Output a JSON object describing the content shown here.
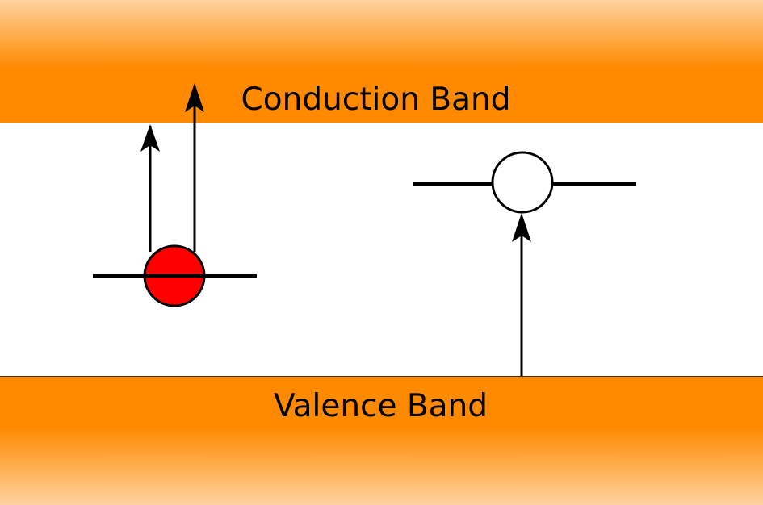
{
  "bands": {
    "conduction_label": "Conduction Band",
    "valence_label": "Valence Band"
  },
  "colors": {
    "band_orange": "#ff8a00",
    "band_fade": "#ffd2a0",
    "electron_fill": "#ff0000",
    "hole_fill": "#ffffff",
    "line": "#000000"
  },
  "icons": {
    "electron": "filled-circle",
    "hole": "empty-circle",
    "transition": "up-arrow"
  }
}
